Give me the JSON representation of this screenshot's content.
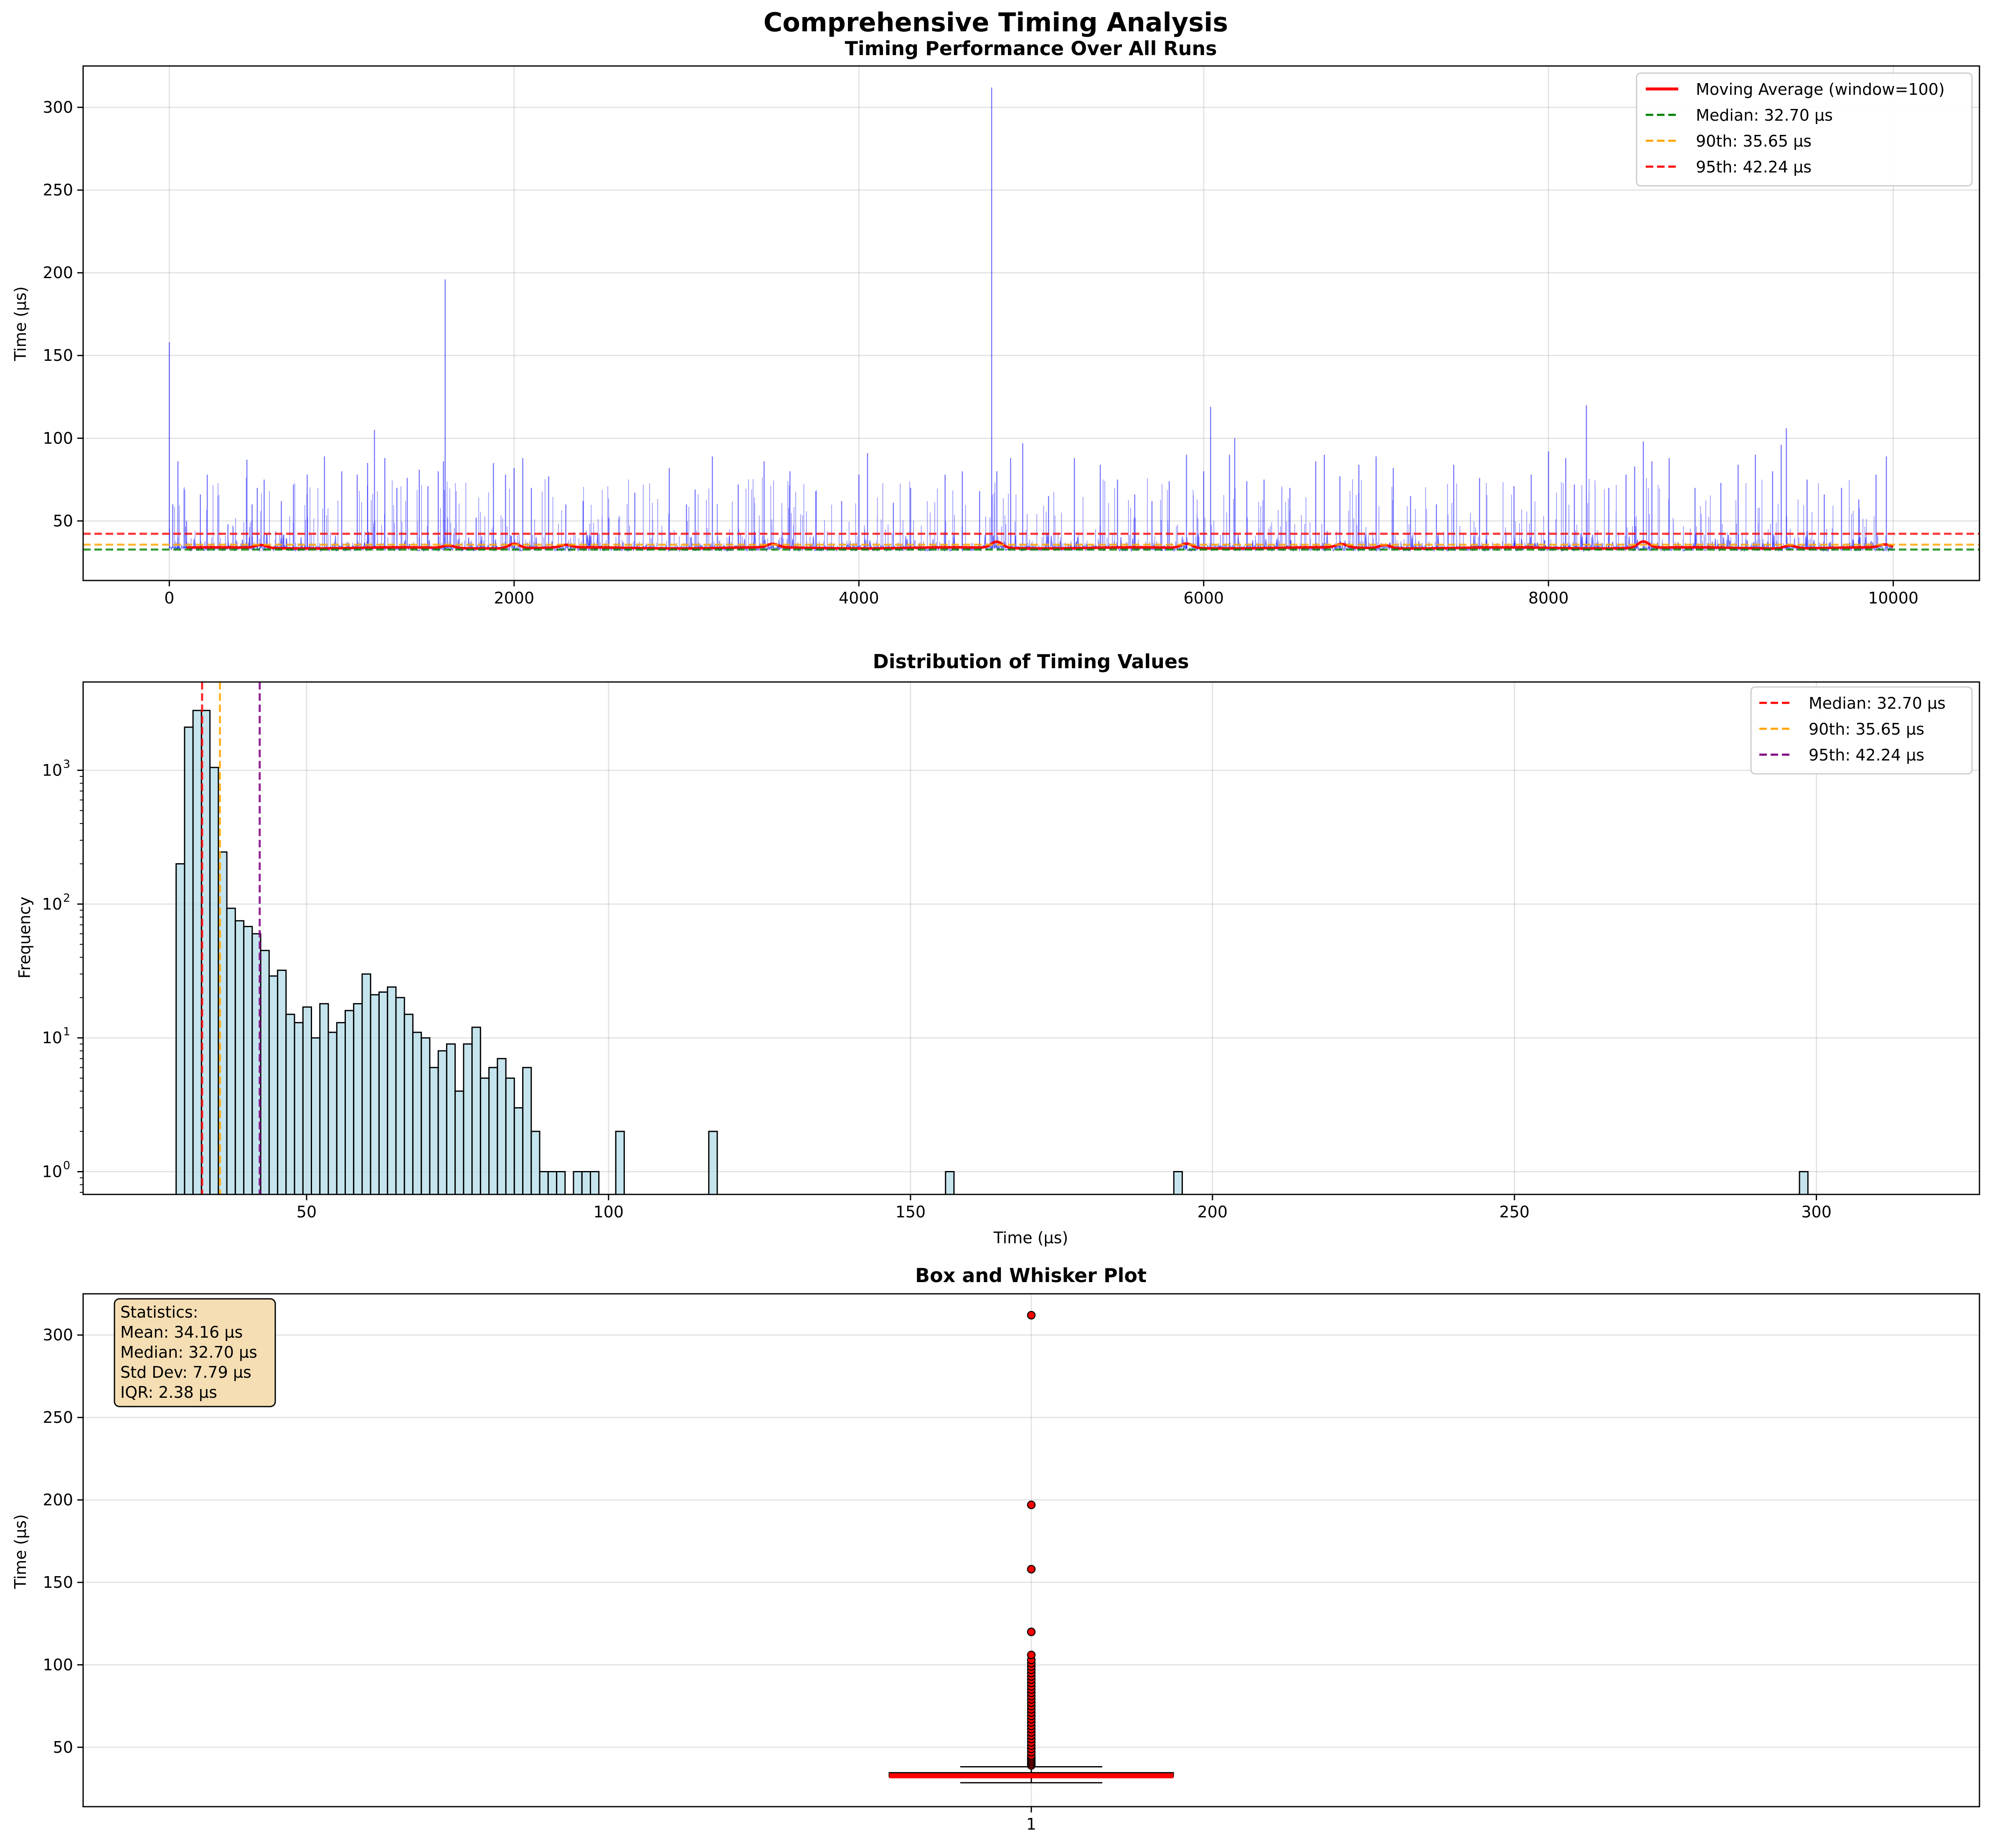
{
  "figure": {
    "title": "Comprehensive Timing Analysis"
  },
  "colors": {
    "raw_line": "#0000ff",
    "moving_avg": "#ff0000",
    "median_line_1": "#008000",
    "p90_line": "#ffa500",
    "p95_line_1": "#ff0000",
    "hist_fill": "#add8e6",
    "median_line_2": "#ff0000",
    "p95_line_2": "#800080",
    "box_median": "#ff0000",
    "outlier": "#ff0000",
    "stats_box": "#f5deb3"
  },
  "chart_data": [
    {
      "type": "line",
      "title": "Timing Performance Over All Runs",
      "xlabel": "",
      "ylabel": "Time (µs)",
      "xlim": [
        -500,
        10500
      ],
      "ylim": [
        14,
        325
      ],
      "grid": true,
      "legend_position": "top-right",
      "x_ticks": [
        0,
        2000,
        4000,
        6000,
        8000,
        10000
      ],
      "x_tick_labels": [
        "0",
        "2000",
        "4000",
        "6000",
        "8000",
        "10000"
      ],
      "y_ticks": [
        50,
        100,
        150,
        200,
        250,
        300
      ],
      "y_tick_labels": [
        "50",
        "100",
        "150",
        "200",
        "250",
        "300"
      ],
      "series": [
        {
          "name": "Moving Average (window=100)",
          "kind": "moving_average",
          "baseline": 33.7,
          "bumps": [
            [
              530,
              35.5
            ],
            [
              1620,
              35.2
            ],
            [
              2000,
              36.5
            ],
            [
              2300,
              35.3
            ],
            [
              3500,
              35.8
            ],
            [
              4800,
              37.5
            ],
            [
              5900,
              36.4
            ],
            [
              6800,
              35.8
            ],
            [
              7050,
              35.6
            ],
            [
              8550,
              37.6
            ],
            [
              9400,
              35.5
            ],
            [
              9950,
              35.5
            ]
          ]
        }
      ],
      "raw_series": {
        "n_runs": 10000,
        "baseline": 33.5,
        "spikes": [
          [
            0,
            158
          ],
          [
            20,
            60
          ],
          [
            50,
            86
          ],
          [
            100,
            50
          ],
          [
            180,
            66
          ],
          [
            220,
            78
          ],
          [
            340,
            48
          ],
          [
            450,
            87
          ],
          [
            480,
            60
          ],
          [
            510,
            70
          ],
          [
            550,
            75
          ],
          [
            650,
            62
          ],
          [
            720,
            72
          ],
          [
            800,
            78
          ],
          [
            900,
            89
          ],
          [
            1000,
            80
          ],
          [
            1090,
            78
          ],
          [
            1150,
            85
          ],
          [
            1190,
            105
          ],
          [
            1250,
            88
          ],
          [
            1320,
            70
          ],
          [
            1380,
            76
          ],
          [
            1450,
            81
          ],
          [
            1500,
            71
          ],
          [
            1560,
            80
          ],
          [
            1590,
            86
          ],
          [
            1600,
            196
          ],
          [
            1780,
            52
          ],
          [
            1880,
            85
          ],
          [
            1950,
            78
          ],
          [
            2000,
            82
          ],
          [
            2050,
            88
          ],
          [
            2100,
            70
          ],
          [
            2200,
            77
          ],
          [
            2300,
            60
          ],
          [
            2400,
            62
          ],
          [
            2550,
            52
          ],
          [
            2700,
            67
          ],
          [
            2900,
            82
          ],
          [
            3000,
            60
          ],
          [
            3050,
            69
          ],
          [
            3150,
            89
          ],
          [
            3300,
            72
          ],
          [
            3450,
            86
          ],
          [
            3600,
            80
          ],
          [
            3750,
            68
          ],
          [
            3900,
            62
          ],
          [
            4000,
            78
          ],
          [
            4050,
            91
          ],
          [
            4200,
            61
          ],
          [
            4300,
            70
          ],
          [
            4500,
            78
          ],
          [
            4600,
            80
          ],
          [
            4700,
            68
          ],
          [
            4770,
            312
          ],
          [
            4800,
            80
          ],
          [
            4880,
            88
          ],
          [
            4950,
            97
          ],
          [
            5100,
            65
          ],
          [
            5250,
            88
          ],
          [
            5400,
            84
          ],
          [
            5500,
            75
          ],
          [
            5600,
            66
          ],
          [
            5700,
            62
          ],
          [
            5800,
            74
          ],
          [
            5900,
            90
          ],
          [
            6000,
            80
          ],
          [
            6040,
            119
          ],
          [
            6150,
            90
          ],
          [
            6180,
            100
          ],
          [
            6250,
            74
          ],
          [
            6350,
            75
          ],
          [
            6500,
            70
          ],
          [
            6650,
            86
          ],
          [
            6700,
            90
          ],
          [
            6790,
            77
          ],
          [
            6900,
            84
          ],
          [
            7000,
            89
          ],
          [
            7100,
            82
          ],
          [
            7200,
            65
          ],
          [
            7350,
            60
          ],
          [
            7450,
            84
          ],
          [
            7600,
            76
          ],
          [
            7800,
            71
          ],
          [
            7900,
            78
          ],
          [
            8000,
            92
          ],
          [
            8100,
            88
          ],
          [
            8150,
            72
          ],
          [
            8220,
            120
          ],
          [
            8350,
            70
          ],
          [
            8450,
            78
          ],
          [
            8500,
            83
          ],
          [
            8550,
            98
          ],
          [
            8600,
            86
          ],
          [
            8700,
            88
          ],
          [
            8850,
            70
          ],
          [
            9000,
            73
          ],
          [
            9100,
            84
          ],
          [
            9200,
            90
          ],
          [
            9300,
            80
          ],
          [
            9350,
            96
          ],
          [
            9380,
            106
          ],
          [
            9500,
            75
          ],
          [
            9600,
            66
          ],
          [
            9700,
            70
          ],
          [
            9800,
            63
          ],
          [
            9900,
            78
          ],
          [
            9960,
            89
          ]
        ]
      },
      "hlines": [
        {
          "name": "Median: 32.70 µs",
          "value": 32.7,
          "color": "#008000"
        },
        {
          "name": "90th: 35.65 µs",
          "value": 35.65,
          "color": "#ffa500"
        },
        {
          "name": "95th: 42.24 µs",
          "value": 42.24,
          "color": "#ff0000"
        }
      ]
    },
    {
      "type": "bar",
      "subtype": "histogram",
      "title": "Distribution of Timing Values",
      "xlabel": "Time (µs)",
      "ylabel": "Frequency",
      "xlim": [
        13,
        327
      ],
      "ylog": true,
      "ylim_log10": [
        -0.17,
        3.66
      ],
      "grid": true,
      "legend_position": "top-right",
      "x_ticks": [
        50,
        100,
        150,
        200,
        250,
        300
      ],
      "x_tick_labels": [
        "50",
        "100",
        "150",
        "200",
        "250",
        "300"
      ],
      "y_ticks": [
        1,
        10,
        100,
        1000
      ],
      "y_tick_labels": [
        "10",
        "10",
        "10",
        "10"
      ],
      "y_tick_exponents": [
        "0",
        "1",
        "2",
        "3"
      ],
      "bin_start": 28.4,
      "bin_width": 1.4,
      "counts": [
        200,
        2100,
        2800,
        2800,
        1050,
        245,
        93,
        75,
        68,
        60,
        45,
        29,
        32,
        15,
        13,
        17,
        10,
        18,
        11,
        13,
        16,
        18,
        30,
        21,
        22,
        24,
        20,
        15,
        11,
        10,
        6,
        8,
        9,
        4,
        9,
        12,
        5,
        6,
        7,
        5,
        3,
        6,
        2,
        1,
        1,
        1,
        0,
        1,
        1,
        1,
        0,
        0,
        2,
        0,
        0,
        0,
        0,
        0,
        0,
        0,
        0,
        0,
        0,
        2,
        0,
        0,
        0,
        0,
        0,
        0,
        0,
        0,
        0,
        0,
        0,
        0,
        0,
        0,
        0,
        0,
        0,
        0,
        0,
        0,
        0,
        0,
        0,
        0,
        0,
        0,
        0,
        1,
        0,
        0,
        0,
        0,
        0,
        0,
        0,
        0,
        0,
        0,
        0,
        0,
        0,
        0,
        0,
        0,
        0,
        0,
        0,
        0,
        0,
        0,
        0,
        0,
        0,
        0,
        1,
        0,
        0,
        0,
        0,
        0,
        0,
        0,
        0,
        0,
        0,
        0,
        0,
        0,
        0,
        0,
        0,
        0,
        0,
        0,
        0,
        0,
        0,
        0,
        0,
        0,
        0,
        0,
        0,
        0,
        0,
        0,
        0,
        0,
        0,
        0,
        0,
        0,
        0,
        0,
        0,
        0,
        0,
        0,
        0,
        0,
        0,
        0,
        0,
        0,
        0,
        0,
        0,
        0,
        0,
        0,
        0,
        0,
        0,
        0,
        0,
        0,
        0,
        0,
        0,
        0,
        0,
        0,
        0,
        0,
        0,
        0,
        0,
        0,
        1
      ],
      "vlines": [
        {
          "name": "Median: 32.70 µs",
          "value": 32.7,
          "color": "#ff0000"
        },
        {
          "name": "90th: 35.65 µs",
          "value": 35.65,
          "color": "#ffa500"
        },
        {
          "name": "95th: 42.24 µs",
          "value": 42.24,
          "color": "#800080"
        }
      ]
    },
    {
      "type": "scatter",
      "subtype": "boxplot",
      "title": "Box and Whisker Plot",
      "xlabel": "",
      "ylabel": "Time (µs)",
      "ylim": [
        14,
        325
      ],
      "grid": true,
      "x_tick_labels": [
        "1"
      ],
      "y_ticks": [
        50,
        100,
        150,
        200,
        250,
        300
      ],
      "y_tick_labels": [
        "50",
        "100",
        "150",
        "200",
        "250",
        "300"
      ],
      "box": {
        "q1": 32.2,
        "median": 32.7,
        "q3": 34.58,
        "whisker_low": 28.5,
        "whisker_high": 38.2
      },
      "outliers": [
        39,
        40,
        41,
        42,
        43,
        44,
        45,
        47,
        49,
        51,
        53,
        55,
        57,
        59,
        61,
        63,
        65,
        67,
        69,
        71,
        73,
        75,
        77,
        79,
        81,
        83,
        85,
        87,
        89,
        91,
        93,
        95,
        97,
        99,
        101,
        103,
        106,
        120,
        158,
        197,
        312
      ],
      "stats_box": {
        "heading": "Statistics:",
        "lines": [
          "Mean: 34.16 µs",
          "Median: 32.70 µs",
          "Std Dev: 7.79 µs",
          "IQR: 2.38 µs"
        ]
      }
    }
  ]
}
